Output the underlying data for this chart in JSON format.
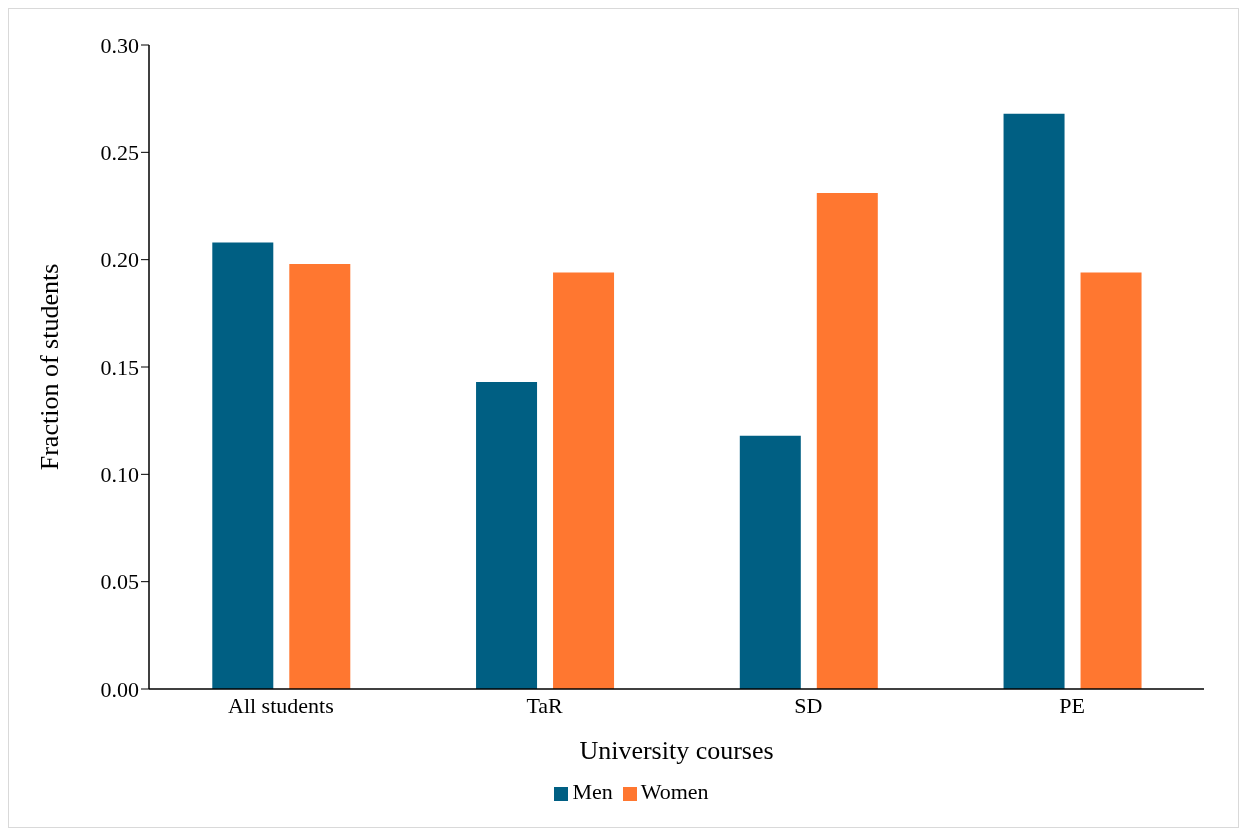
{
  "chart_data": {
    "type": "bar",
    "xlabel": "University courses",
    "ylabel": "Fraction of students",
    "categories": [
      "All students",
      "TaR",
      "SD",
      "PE"
    ],
    "series": [
      {
        "name": "Men",
        "color": "#005f83",
        "values": [
          0.208,
          0.143,
          0.118,
          0.268
        ]
      },
      {
        "name": "Women",
        "color": "#ff7730",
        "values": [
          0.198,
          0.194,
          0.231,
          0.194
        ]
      }
    ],
    "ylim": [
      0,
      0.3
    ],
    "yticks": [
      {
        "value": 0,
        "label": "0.00"
      },
      {
        "value": 0.05,
        "label": "0.05"
      },
      {
        "value": 0.1,
        "label": "0.10"
      },
      {
        "value": 0.15,
        "label": "0.15"
      },
      {
        "value": 0.2,
        "label": "0.20"
      },
      {
        "value": 0.25,
        "label": "0.25"
      },
      {
        "value": 0.3,
        "label": "0.30"
      }
    ],
    "grid": false,
    "legend": "bottom"
  }
}
